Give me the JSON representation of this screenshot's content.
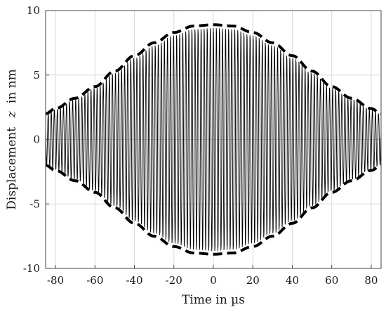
{
  "chart_data": {
    "type": "line",
    "title": "",
    "xlabel": "Time in µs",
    "ylabel_prefix": "Displacement",
    "ylabel_var": "z",
    "ylabel_suffix": "in nm",
    "xlim": [
      -85,
      85
    ],
    "ylim": [
      -10,
      10
    ],
    "x_ticks": [
      -80,
      -60,
      -40,
      -20,
      0,
      20,
      40,
      60,
      80
    ],
    "y_ticks": [
      10,
      5,
      0,
      -5,
      -10
    ],
    "x_tick_labels": [
      "-80",
      "-60",
      "-40",
      "-20",
      "0",
      "20",
      "40",
      "60",
      "80"
    ],
    "y_tick_labels": [
      "10",
      "5",
      "0",
      "-5",
      "-10"
    ],
    "grid": true,
    "colors": {
      "signal": "#000000",
      "envelope": "#000000",
      "grid": "#d9d9d9",
      "axes": "#444444"
    },
    "series": [
      {
        "style": "solid-oscillation",
        "description_values": {
          "oscillation_period_us": 1.55
        },
        "x": [
          -85,
          -80,
          -70,
          -60,
          -50,
          -40,
          -30,
          -20,
          -10,
          0,
          10,
          20,
          30,
          40,
          50,
          60,
          70,
          80,
          85
        ],
        "y": [
          2.0,
          2.4,
          3.2,
          4.1,
          5.3,
          6.5,
          7.5,
          8.3,
          8.8,
          8.9,
          8.8,
          8.3,
          7.5,
          6.5,
          5.3,
          4.1,
          3.2,
          2.4,
          2.0
        ]
      },
      {
        "style": "dashed-envelope-upper",
        "x": [
          -85,
          -80,
          -70,
          -60,
          -50,
          -40,
          -30,
          -20,
          -10,
          0,
          10,
          20,
          30,
          40,
          50,
          60,
          70,
          80,
          85
        ],
        "y": [
          2.0,
          2.4,
          3.2,
          4.1,
          5.3,
          6.5,
          7.5,
          8.3,
          8.8,
          8.9,
          8.8,
          8.3,
          7.5,
          6.5,
          5.3,
          4.1,
          3.2,
          2.4,
          2.0
        ]
      },
      {
        "style": "dashed-envelope-lower",
        "x": [
          -85,
          -80,
          -70,
          -60,
          -50,
          -40,
          -30,
          -20,
          -10,
          0,
          10,
          20,
          30,
          40,
          50,
          60,
          70,
          80,
          85
        ],
        "y": [
          -2.0,
          -2.4,
          -3.2,
          -4.1,
          -5.3,
          -6.5,
          -7.5,
          -8.3,
          -8.8,
          -8.9,
          -8.8,
          -8.3,
          -7.5,
          -6.5,
          -5.3,
          -4.1,
          -3.2,
          -2.4,
          -2.0
        ]
      }
    ]
  }
}
